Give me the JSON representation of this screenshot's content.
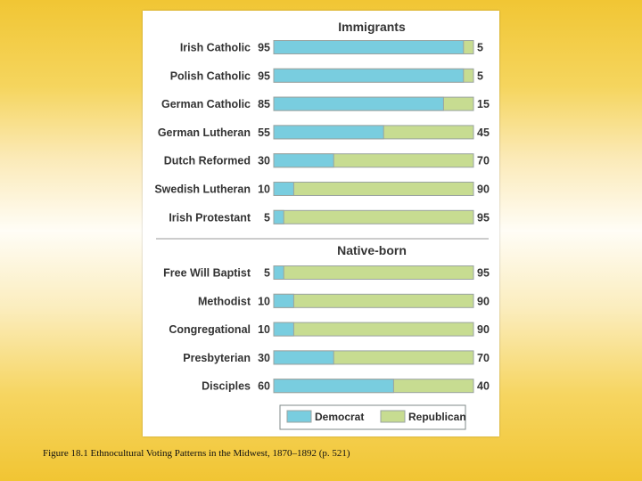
{
  "chart_data": {
    "type": "bar",
    "stacked": "horizontal-100",
    "series_names": [
      "Democrat",
      "Republican"
    ],
    "colors": {
      "democrat": "#79cddf",
      "republican": "#c7dc91",
      "border": "#9aa3a0",
      "divider": "#9a9a9a"
    },
    "sections": [
      {
        "title": "Immigrants",
        "rows": [
          {
            "label": "Irish Catholic",
            "democrat": 95,
            "republican": 5
          },
          {
            "label": "Polish Catholic",
            "democrat": 95,
            "republican": 5
          },
          {
            "label": "German Catholic",
            "democrat": 85,
            "republican": 15
          },
          {
            "label": "German Lutheran",
            "democrat": 55,
            "republican": 45
          },
          {
            "label": "Dutch Reformed",
            "democrat": 30,
            "republican": 70
          },
          {
            "label": "Swedish Lutheran",
            "democrat": 10,
            "republican": 90
          },
          {
            "label": "Irish Protestant",
            "democrat": 5,
            "republican": 95
          }
        ]
      },
      {
        "title": "Native-born",
        "rows": [
          {
            "label": "Free Will Baptist",
            "democrat": 5,
            "republican": 95
          },
          {
            "label": "Methodist",
            "democrat": 10,
            "republican": 90
          },
          {
            "label": "Congregational",
            "democrat": 10,
            "republican": 90
          },
          {
            "label": "Presbyterian",
            "democrat": 30,
            "republican": 70
          },
          {
            "label": "Disciples",
            "democrat": 60,
            "republican": 40
          }
        ]
      }
    ],
    "legend": {
      "position": "bottom-right",
      "items": [
        "Democrat",
        "Republican"
      ]
    }
  },
  "caption": "Figure 18.1 Ethnocultural Voting Patterns in the Midwest, 1870–1892 (p. 521)"
}
